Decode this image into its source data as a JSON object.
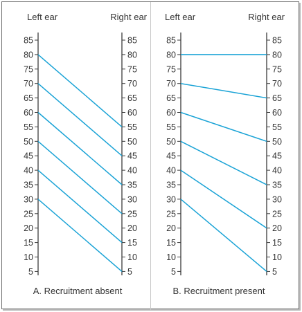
{
  "panels": [
    {
      "left_header": "Left ear",
      "right_header": "Right ear",
      "caption": "A. Recruitment absent",
      "ticks": [
        85,
        80,
        75,
        70,
        65,
        60,
        55,
        50,
        45,
        40,
        35,
        30,
        25,
        20,
        15,
        10,
        5
      ],
      "lines": [
        {
          "left_db": 80,
          "right_db": 55
        },
        {
          "left_db": 70,
          "right_db": 45
        },
        {
          "left_db": 60,
          "right_db": 35
        },
        {
          "left_db": 50,
          "right_db": 25
        },
        {
          "left_db": 40,
          "right_db": 15
        },
        {
          "left_db": 30,
          "right_db": 5
        }
      ]
    },
    {
      "left_header": "Left ear",
      "right_header": "Right ear",
      "caption": "B. Recruitment present",
      "ticks": [
        85,
        80,
        75,
        70,
        65,
        60,
        55,
        50,
        45,
        40,
        35,
        30,
        25,
        20,
        15,
        10,
        5
      ],
      "lines": [
        {
          "left_db": 80,
          "right_db": 80
        },
        {
          "left_db": 70,
          "right_db": 65
        },
        {
          "left_db": 60,
          "right_db": 50
        },
        {
          "left_db": 50,
          "right_db": 35
        },
        {
          "left_db": 40,
          "right_db": 20
        },
        {
          "left_db": 30,
          "right_db": 5
        }
      ]
    }
  ],
  "colors": {
    "line": "#1aa3d6",
    "axis": "#3a3a3a"
  }
}
